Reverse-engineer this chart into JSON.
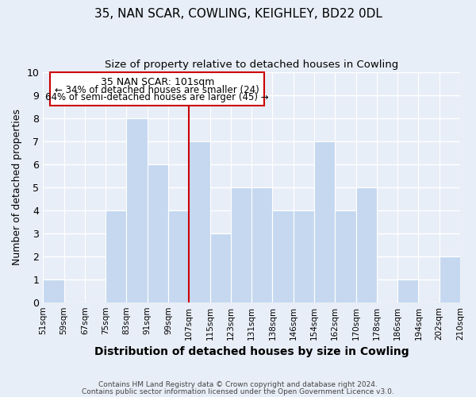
{
  "title": "35, NAN SCAR, COWLING, KEIGHLEY, BD22 0DL",
  "subtitle": "Size of property relative to detached houses in Cowling",
  "xlabel": "Distribution of detached houses by size in Cowling",
  "ylabel": "Number of detached properties",
  "bar_labels": [
    "51sqm",
    "59sqm",
    "67sqm",
    "75sqm",
    "83sqm",
    "91sqm",
    "99sqm",
    "107sqm",
    "115sqm",
    "123sqm",
    "131sqm",
    "138sqm",
    "146sqm",
    "154sqm",
    "162sqm",
    "170sqm",
    "178sqm",
    "186sqm",
    "194sqm",
    "202sqm",
    "210sqm"
  ],
  "bar_values": [
    1,
    0,
    0,
    4,
    8,
    6,
    4,
    7,
    3,
    5,
    5,
    4,
    4,
    7,
    4,
    5,
    0,
    1,
    0,
    2
  ],
  "bar_color": "#c5d8f0",
  "vline_color": "#cc0000",
  "vline_index": 6,
  "annotation_title": "35 NAN SCAR: 101sqm",
  "annotation_line1": "← 34% of detached houses are smaller (24)",
  "annotation_line2": "64% of semi-detached houses are larger (45) →",
  "annotation_box_facecolor": "#ffffff",
  "annotation_box_edgecolor": "#cc0000",
  "ylim": [
    0,
    10
  ],
  "yticks": [
    0,
    1,
    2,
    3,
    4,
    5,
    6,
    7,
    8,
    9,
    10
  ],
  "footer1": "Contains HM Land Registry data © Crown copyright and database right 2024.",
  "footer2": "Contains public sector information licensed under the Open Government Licence v3.0.",
  "bg_color": "#e8eef7",
  "grid_color": "#ffffff"
}
